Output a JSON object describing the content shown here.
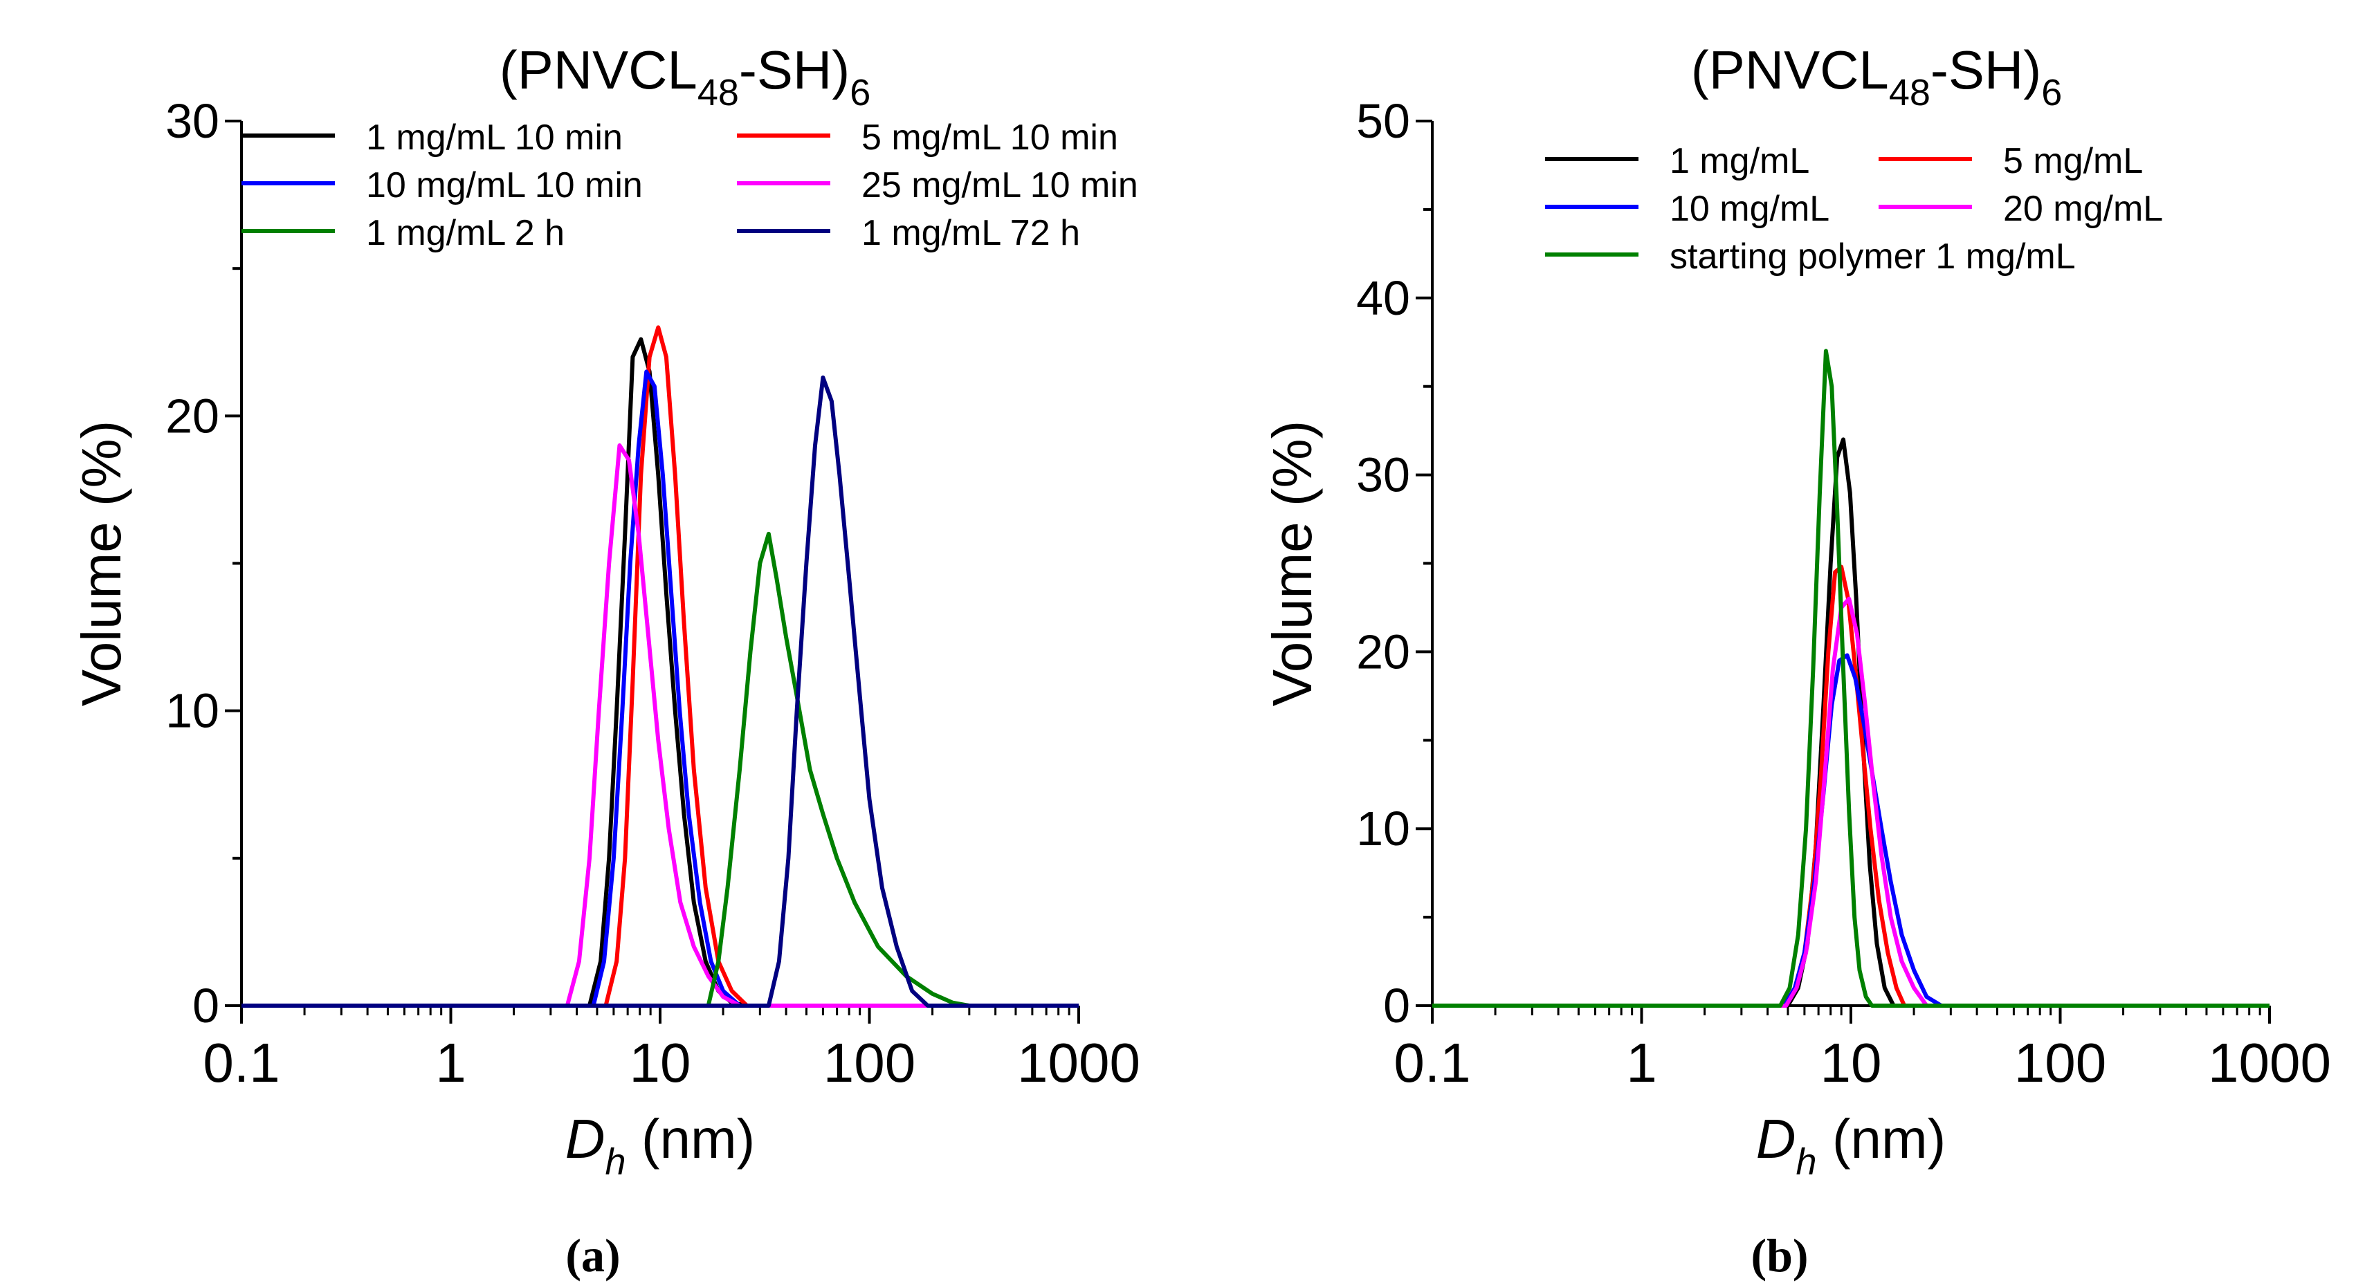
{
  "chart_data": [
    {
      "type": "line",
      "panel_label": "(a)",
      "title": {
        "main": "(PNVCL",
        "sub1": "48",
        "mid": "-SH)",
        "sub2": "6"
      },
      "xlabel": {
        "italic": "D",
        "sub": "h",
        "rest": " (nm)"
      },
      "ylabel": "Volume (%)",
      "x_scale": "log",
      "xlim": [
        0.1,
        1000
      ],
      "ylim": [
        0,
        30
      ],
      "x_ticks": [
        {
          "value": 0.1,
          "label": "0.1"
        },
        {
          "value": 1,
          "label": "1"
        },
        {
          "value": 10,
          "label": "10"
        },
        {
          "value": 100,
          "label": "100"
        },
        {
          "value": 1000,
          "label": "1000"
        }
      ],
      "y_ticks": [
        {
          "value": 0,
          "label": "0"
        },
        {
          "value": 10,
          "label": "10"
        },
        {
          "value": 20,
          "label": "20"
        },
        {
          "value": 30,
          "label": "30"
        }
      ],
      "legend_position": "top",
      "legend_columns": 2,
      "series": [
        {
          "name": "1 mg/mL 10 min",
          "color": "#000000",
          "x": [
            0.1,
            4.6,
            5.2,
            5.7,
            6.2,
            6.8,
            7.4,
            8.1,
            8.9,
            9.8,
            10.7,
            11.8,
            13,
            14.5,
            16.5,
            19,
            22,
            26,
            1000
          ],
          "y": [
            0,
            0,
            1.5,
            5,
            10,
            16,
            22,
            22.6,
            21.5,
            18,
            14,
            10,
            6.5,
            3.5,
            1.5,
            0.5,
            0.1,
            0,
            0
          ]
        },
        {
          "name": "5 mg/mL 10 min",
          "color": "#ff0000",
          "x": [
            0.1,
            5.5,
            6.2,
            6.8,
            7.4,
            8.1,
            8.9,
            9.8,
            10.7,
            11.8,
            13,
            14.5,
            16.5,
            19,
            22,
            26,
            1000
          ],
          "y": [
            0,
            0,
            1.5,
            5,
            11,
            18,
            22,
            23,
            22,
            18,
            13,
            8,
            4,
            1.5,
            0.5,
            0,
            0
          ]
        },
        {
          "name": "10 mg/mL 10 min",
          "color": "#0000ff",
          "x": [
            0.1,
            4.8,
            5.4,
            6,
            6.6,
            7.2,
            7.9,
            8.6,
            9.4,
            10.3,
            11.3,
            12.4,
            13.7,
            15.5,
            17.5,
            20,
            24,
            1000
          ],
          "y": [
            0,
            0,
            1.5,
            5,
            10,
            15,
            19,
            21.5,
            21,
            18,
            14,
            10,
            6.5,
            3.5,
            1.5,
            0.5,
            0,
            0
          ]
        },
        {
          "name": "25 mg/mL 10 min",
          "color": "#ff00ff",
          "x": [
            0.1,
            3.6,
            4.1,
            4.6,
            5.1,
            5.7,
            6.4,
            7.1,
            7.9,
            8.8,
            9.8,
            11,
            12.5,
            14.5,
            17,
            20,
            24,
            1000
          ],
          "y": [
            0,
            0,
            1.5,
            5,
            10,
            15,
            19,
            18.5,
            16,
            12.5,
            9,
            6,
            3.5,
            2,
            1,
            0.3,
            0,
            0
          ]
        },
        {
          "name": "1 mg/mL   2 h",
          "color": "#008000",
          "x": [
            0.1,
            17,
            19,
            21,
            24,
            27,
            30,
            33,
            36,
            40,
            45,
            52,
            60,
            70,
            85,
            110,
            150,
            200,
            250,
            300,
            1000
          ],
          "y": [
            0,
            0,
            1.5,
            4,
            8,
            12,
            15,
            16,
            14.5,
            12.5,
            10.5,
            8,
            6.5,
            5,
            3.5,
            2,
            1,
            0.4,
            0.1,
            0,
            0
          ]
        },
        {
          "name": "1 mg/mL 72 h",
          "color": "#000080",
          "x": [
            0.1,
            33,
            37,
            41,
            45,
            50,
            55,
            60,
            66,
            72,
            80,
            90,
            100,
            115,
            135,
            160,
            190,
            1000
          ],
          "y": [
            0,
            0,
            1.5,
            5,
            10,
            15,
            19,
            21.3,
            20.5,
            18,
            14.5,
            10.5,
            7,
            4,
            2,
            0.5,
            0,
            0
          ]
        }
      ]
    },
    {
      "type": "line",
      "panel_label": "(b)",
      "title": {
        "main": "(PNVCL",
        "sub1": "48",
        "mid": "-SH)",
        "sub2": "6"
      },
      "xlabel": {
        "italic": "D",
        "sub": "h",
        "rest": " (nm)"
      },
      "ylabel": "Volume (%)",
      "x_scale": "log",
      "xlim": [
        0.1,
        1000
      ],
      "ylim": [
        0,
        50
      ],
      "x_ticks": [
        {
          "value": 0.1,
          "label": "0.1"
        },
        {
          "value": 1,
          "label": "1"
        },
        {
          "value": 10,
          "label": "10"
        },
        {
          "value": 100,
          "label": "100"
        },
        {
          "value": 1000,
          "label": "1000"
        }
      ],
      "y_ticks": [
        {
          "value": 0,
          "label": "0"
        },
        {
          "value": 10,
          "label": "10"
        },
        {
          "value": 20,
          "label": "20"
        },
        {
          "value": 30,
          "label": "30"
        },
        {
          "value": 40,
          "label": "40"
        },
        {
          "value": 50,
          "label": "50"
        }
      ],
      "legend_position": "top",
      "legend_columns": 2,
      "series": [
        {
          "name": "1 mg/mL",
          "color": "#000000",
          "x": [
            0.1,
            5,
            5.6,
            6.2,
            6.8,
            7.4,
            8,
            8.6,
            9.2,
            9.9,
            10.6,
            11.4,
            12.3,
            13.3,
            14.5,
            16,
            1000
          ],
          "y": [
            0,
            0,
            1,
            3.5,
            9,
            17,
            25,
            31,
            32,
            29,
            23,
            15,
            8,
            3.5,
            1,
            0,
            0
          ]
        },
        {
          "name": "5 mg/mL",
          "color": "#ff0000",
          "x": [
            0.1,
            4.8,
            5.4,
            6,
            6.6,
            7.2,
            7.8,
            8.4,
            9,
            9.7,
            10.5,
            11.4,
            12.4,
            13.6,
            15,
            16.5,
            18,
            1000
          ],
          "y": [
            0,
            0,
            1,
            3,
            7,
            13,
            20,
            24.5,
            24.8,
            23,
            19,
            14.5,
            10,
            6,
            3,
            1,
            0,
            0
          ]
        },
        {
          "name": "10 mg/mL",
          "color": "#0000ff",
          "x": [
            0.1,
            4.8,
            5.4,
            6,
            6.7,
            7.4,
            8.1,
            8.8,
            9.6,
            10.5,
            11.5,
            12.7,
            14,
            15.5,
            17.5,
            20,
            23,
            27,
            1000
          ],
          "y": [
            0,
            0,
            1,
            3,
            7,
            12,
            17,
            19.5,
            19.8,
            18.5,
            16,
            13,
            10,
            7,
            4,
            2,
            0.5,
            0,
            0
          ]
        },
        {
          "name": "20 mg/mL",
          "color": "#ff00ff",
          "x": [
            0.1,
            4.9,
            5.5,
            6.1,
            6.8,
            7.5,
            8.2,
            9,
            9.8,
            10.7,
            11.7,
            12.8,
            14,
            15.5,
            17.5,
            20,
            23,
            1000
          ],
          "y": [
            0,
            0,
            1,
            3,
            7,
            13,
            19,
            22.5,
            23,
            21,
            17,
            12.5,
            8.5,
            5,
            2.5,
            1,
            0,
            0
          ]
        },
        {
          "name": "starting polymer 1 mg/mL",
          "color": "#008000",
          "x": [
            0.1,
            4.6,
            5.1,
            5.6,
            6.1,
            6.6,
            7.1,
            7.6,
            8.1,
            8.6,
            9.2,
            9.8,
            10.4,
            11,
            11.8,
            12.6,
            1000
          ],
          "y": [
            0,
            0,
            1,
            4,
            10,
            19,
            29,
            37,
            35,
            28,
            19,
            11,
            5,
            2,
            0.5,
            0,
            0
          ]
        }
      ]
    }
  ]
}
